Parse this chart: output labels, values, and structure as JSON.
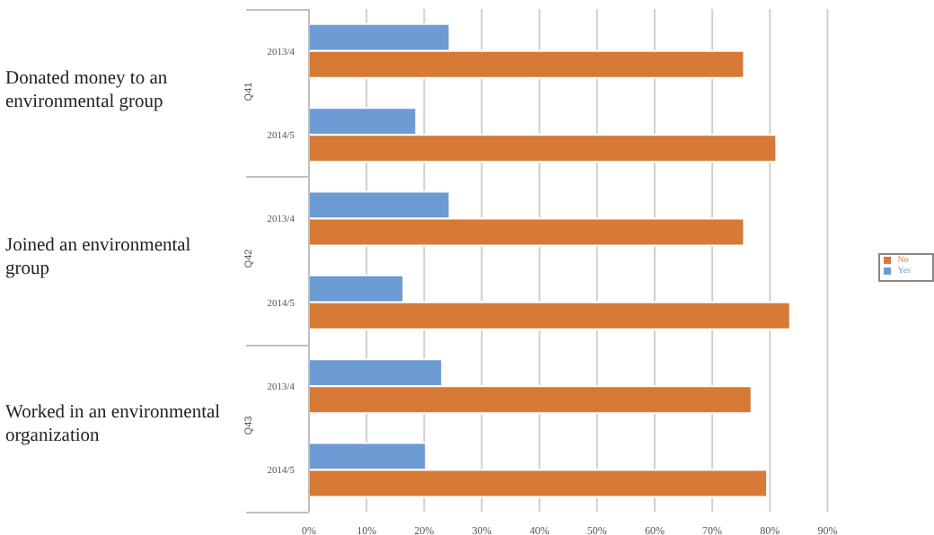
{
  "chart_data": {
    "type": "bar",
    "orientation": "horizontal",
    "categories": [
      "2013/4",
      "2014/5",
      "2013/4",
      "2014/5",
      "2013/4",
      "2014/5"
    ],
    "series": [
      {
        "name": "Yes",
        "color": "#6d9bd4",
        "values": [
          24.4,
          18.6,
          24.4,
          16.4,
          23.1,
          20.3
        ]
      },
      {
        "name": "No",
        "color": "#d67a36",
        "values": [
          75.5,
          81.1,
          75.5,
          83.5,
          76.8,
          79.5
        ]
      }
    ],
    "xlim": [
      0,
      90
    ],
    "xticks": [
      {
        "value": 0,
        "label": "0%"
      },
      {
        "value": 10,
        "label": "10%"
      },
      {
        "value": 20,
        "label": "20%"
      },
      {
        "value": 30,
        "label": "30%"
      },
      {
        "value": 40,
        "label": "40%"
      },
      {
        "value": 50,
        "label": "50%"
      },
      {
        "value": 60,
        "label": "60%"
      },
      {
        "value": 70,
        "label": "70%"
      },
      {
        "value": 80,
        "label": "80%"
      },
      {
        "value": 90,
        "label": "90%"
      }
    ],
    "annotations": [
      "Donated money to an environmental group",
      "Joined an environmental group",
      "Worked in an environmental organization",
      "Q41",
      "Q42",
      "Q43"
    ],
    "grid": "x",
    "legend": "right"
  }
}
